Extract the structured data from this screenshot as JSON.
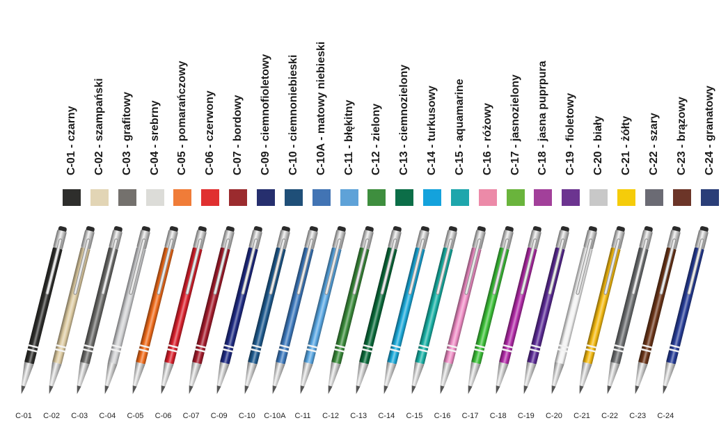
{
  "colors": [
    {
      "label": "C-01 - czarny",
      "code": "C-01",
      "hex": "#2e2e2c"
    },
    {
      "label": "C-02 - szampański",
      "code": "C-02",
      "hex": "#e2d5b5"
    },
    {
      "label": "C-03 - grafitowy",
      "code": "C-03",
      "hex": "#74716d"
    },
    {
      "label": "C-04 - srebrny",
      "code": "C-04",
      "hex": "#dcdcd8"
    },
    {
      "label": "C-05 - pomarańczowy",
      "code": "C-05",
      "hex": "#f07c38"
    },
    {
      "label": "C-06 - czerwony",
      "code": "C-06",
      "hex": "#e03030"
    },
    {
      "label": "C-07 - bordowy",
      "code": "C-07",
      "hex": "#9b2b2e"
    },
    {
      "label": "C-09 - ciemnofioletowy",
      "code": "C-09",
      "hex": "#262f6e"
    },
    {
      "label": "C-10 - ciemnoniebieski",
      "code": "C-10",
      "hex": "#1f4f78"
    },
    {
      "label": "C-10A - matowy niebieski",
      "code": "C-10A",
      "hex": "#4274b4"
    },
    {
      "label": "C-11 - błękitny",
      "code": "C-11",
      "hex": "#5ea2d8"
    },
    {
      "label": "C-12 - zielony",
      "code": "C-12",
      "hex": "#3e8e3e"
    },
    {
      "label": "C-13 - ciemnozielony",
      "code": "C-13",
      "hex": "#0c6e48"
    },
    {
      "label": "C-14 - turkusowy",
      "code": "C-14",
      "hex": "#14a2dc"
    },
    {
      "label": "C-15 - aquamarine",
      "code": "C-15",
      "hex": "#1ea6ac"
    },
    {
      "label": "C-16 - różowy",
      "code": "C-16",
      "hex": "#ec8aa8"
    },
    {
      "label": "C-17 - jasnozielony",
      "code": "C-17",
      "hex": "#6ab43c"
    },
    {
      "label": "C-18 - jasna puprpura",
      "code": "C-18",
      "hex": "#a2409a"
    },
    {
      "label": "C-19 - fioletowy",
      "code": "C-19",
      "hex": "#6c3490"
    },
    {
      "label": "C-20 - biały",
      "code": "C-20",
      "hex": "#c8c8c8"
    },
    {
      "label": "C-21 - żółty",
      "code": "C-21",
      "hex": "#f5cc0a"
    },
    {
      "label": "C-22 - szary",
      "code": "C-22",
      "hex": "#6b6b74"
    },
    {
      "label": "C-23 - brązowy",
      "code": "C-23",
      "hex": "#6c3528"
    },
    {
      "label": "C-24 - granatowy",
      "code": "C-24",
      "hex": "#2a3e78"
    }
  ],
  "pens": [
    {
      "code": "C-01",
      "hex": "#2e2e2c"
    },
    {
      "code": "C-02",
      "hex": "#dccaa0"
    },
    {
      "code": "C-03",
      "hex": "#6a6a68"
    },
    {
      "code": "C-04",
      "hex": "#cfd0d2"
    },
    {
      "code": "C-05",
      "hex": "#ee6a1a"
    },
    {
      "code": "C-06",
      "hex": "#d8202c"
    },
    {
      "code": "C-07",
      "hex": "#a41c2c"
    },
    {
      "code": "C-09",
      "hex": "#1e2a82"
    },
    {
      "code": "C-10",
      "hex": "#1e5a8e"
    },
    {
      "code": "C-10A",
      "hex": "#3c78bc"
    },
    {
      "code": "C-11",
      "hex": "#58a6e2"
    },
    {
      "code": "C-12",
      "hex": "#3a8a3a"
    },
    {
      "code": "C-13",
      "hex": "#0a6a3a"
    },
    {
      "code": "C-14",
      "hex": "#1aa8d8"
    },
    {
      "code": "C-15",
      "hex": "#18b0a4"
    },
    {
      "code": "C-16",
      "hex": "#ee8cc4"
    },
    {
      "code": "C-17",
      "hex": "#3cc038"
    },
    {
      "code": "C-18",
      "hex": "#b02aa6"
    },
    {
      "code": "C-19",
      "hex": "#5a2a94"
    },
    {
      "code": "C-20",
      "hex": "#f2f2f2"
    },
    {
      "code": "C-21",
      "hex": "#f2b810"
    },
    {
      "code": "C-22",
      "hex": "#6c6e70"
    },
    {
      "code": "C-23",
      "hex": "#6a3418"
    },
    {
      "code": "C-24",
      "hex": "#263c96"
    }
  ],
  "bottom_labels": [
    "C-01",
    "C-02",
    "C-03",
    "C-04",
    "C-05",
    "C-06",
    "C-07",
    "C-09",
    "C-10",
    "C-10A",
    "C-11",
    "C-12",
    "C-13",
    "C-14",
    "C-15",
    "C-16",
    "C-17",
    "C-18",
    "C-19",
    "C-20",
    "C-21",
    "C-22",
    "C-23",
    "C-24"
  ]
}
